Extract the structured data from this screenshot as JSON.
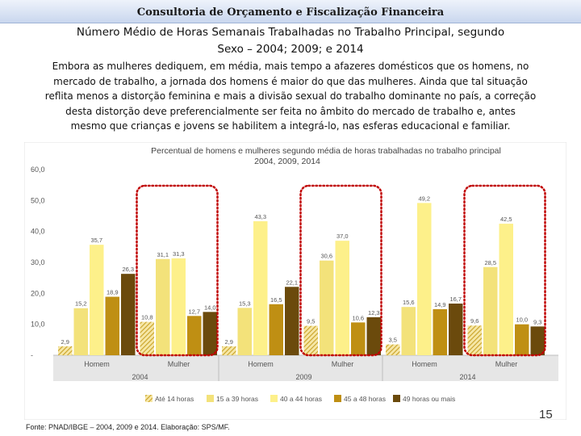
{
  "header": {
    "title": "Consultoria de Orçamento e Fiscalização Financeira"
  },
  "slide": {
    "subtitle_line1": "Número Médio de Horas Semanais Trabalhadas no Trabalho Principal, segundo",
    "subtitle_line2": "Sexo – 2004; 2009; e 2014",
    "body_lines": [
      "Embora as mulheres dediquem, em média, mais tempo a afazeres domésticos que os homens, no",
      "mercado de trabalho, a jornada dos homens é maior do que das mulheres. Ainda que tal situação",
      "reflita menos a distorção feminina e mais a divisão sexual do trabalho dominante no país, a correção",
      "desta distorção deve preferencialmente ser feita no âmbito do mercado de trabalho e, antes",
      "mesmo que crianças e jovens se habilitem a integrá-lo, nas esferas educacional e familiar."
    ],
    "source": "Fonte: PNAD/IBGE – 2004, 2009 e 2014. Elaboração: SPS/MF.",
    "page_number": "15"
  },
  "chart_data": {
    "type": "bar",
    "title_line1": "Percentual de homens e mulheres segundo média de horas trabalhadas no trabalho principal",
    "title_line2": "2004, 2009, 2014",
    "groups": [
      {
        "year": "2004",
        "categories": [
          "Homem",
          "Mulher"
        ]
      },
      {
        "year": "2009",
        "categories": [
          "Homem",
          "Mulher"
        ]
      },
      {
        "year": "2014",
        "categories": [
          "Homem",
          "Mulher"
        ]
      }
    ],
    "ylim": [
      0,
      60
    ],
    "yticks": [
      "60,0",
      "50,0",
      "40,0",
      "30,0",
      "20,0",
      "10,0",
      "-"
    ],
    "series": [
      {
        "name": "Até 14 horas",
        "color": "#c9a227",
        "pattern": "hatch",
        "values": [
          2.9,
          10.8,
          2.9,
          9.5,
          3.5,
          9.6
        ],
        "labels": [
          "2,9",
          "10,8",
          "2,9",
          "9,5",
          "3,5",
          "9,6"
        ]
      },
      {
        "name": "15 a 39 horas",
        "color": "#f3e27a",
        "values": [
          15.2,
          31.1,
          15.3,
          30.6,
          15.6,
          28.5
        ],
        "labels": [
          "15,2",
          "31,1",
          "15,3",
          "30,6",
          "15,6",
          "28,5"
        ]
      },
      {
        "name": "40 a 44 horas",
        "color": "#fdf08a",
        "values": [
          35.7,
          31.3,
          43.3,
          37.0,
          49.2,
          42.5
        ],
        "labels": [
          "35,7",
          "31,3",
          "43,3",
          "37,0",
          "49,2",
          "42,5"
        ]
      },
      {
        "name": "45 a 48 horas",
        "color": "#bf8f13",
        "values": [
          18.9,
          12.7,
          16.5,
          10.6,
          14.9,
          10.0
        ],
        "labels": [
          "18,9",
          "12,7",
          "16,5",
          "10,6",
          "14,9",
          "10,0"
        ]
      },
      {
        "name": "49 horas ou mais",
        "color": "#6b4a0c",
        "values": [
          26.3,
          14.0,
          22.1,
          12.3,
          16.7,
          9.3
        ],
        "labels": [
          "26,3",
          "14,0",
          "22,1",
          "12,3",
          "16,7",
          "9,3"
        ]
      }
    ],
    "highlight_color": "#c00000",
    "grid": false,
    "legend_position": "bottom"
  }
}
